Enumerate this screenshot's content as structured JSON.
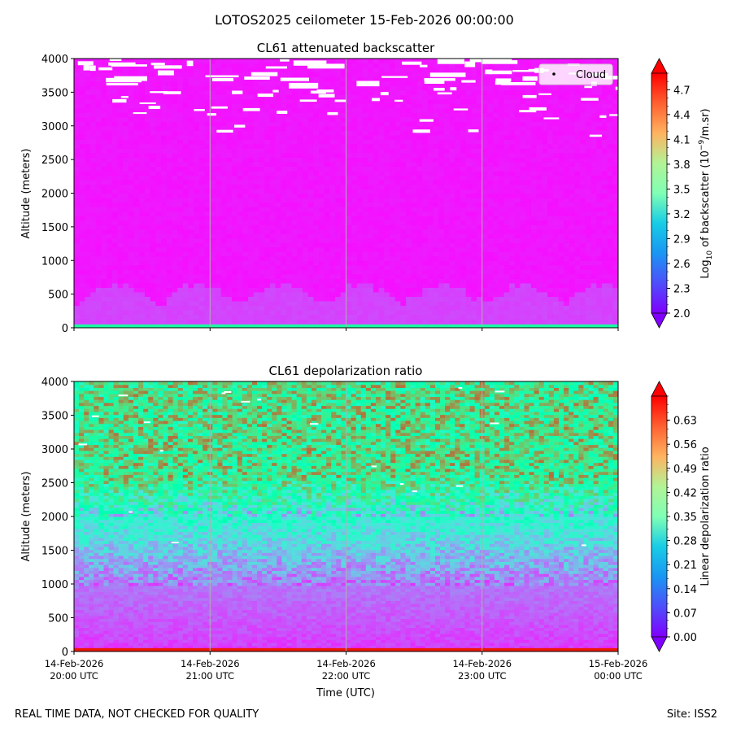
{
  "figure": {
    "suptitle": "LOTOS2025 ceilometer 15-Feb-2026 00:00:00",
    "footer_left": "REAL TIME DATA, NOT CHECKED FOR QUALITY",
    "footer_right": "Site: ISS2",
    "xlabel": "Time (UTC)"
  },
  "chart_data": [
    {
      "type": "heatmap",
      "title": "CL61 attenuated backscatter",
      "ylabel": "Altitude (meters)",
      "xlabel": "",
      "ylim": [
        0,
        4000
      ],
      "yticks": [
        0,
        500,
        1000,
        1500,
        2000,
        2500,
        3000,
        3500,
        4000
      ],
      "xlim": [
        "14-Feb-2026 20:00 UTC",
        "15-Feb-2026 00:00 UTC"
      ],
      "xticks": [
        {
          "date": "14-Feb-2026",
          "time": "20:00 UTC"
        },
        {
          "date": "14-Feb-2026",
          "time": "21:00 UTC"
        },
        {
          "date": "14-Feb-2026",
          "time": "22:00 UTC"
        },
        {
          "date": "14-Feb-2026",
          "time": "23:00 UTC"
        },
        {
          "date": "15-Feb-2026",
          "time": "00:00 UTC"
        }
      ],
      "show_xtick_labels": false,
      "grid": "vertical",
      "legend": {
        "label": "Cloud",
        "placement": "top-right"
      },
      "colorbar": {
        "label_pre": "Log",
        "label_sub": "10",
        "label_mid": " of backscatter (10",
        "label_sup": "−9",
        "label_post": "/m.sr)",
        "range": [
          2.0,
          4.9
        ],
        "ticks": [
          "2.0",
          "2.3",
          "2.6",
          "2.9",
          "3.2",
          "3.5",
          "3.8",
          "4.1",
          "4.4",
          "4.7"
        ],
        "colormap": "rainbow",
        "extend": "both"
      },
      "description_values": {
        "surface_layer_altitude_m": [
          0,
          50
        ],
        "surface_value": 3.6,
        "boundary_layer_top_m": 600,
        "boundary_layer_value": 2.25,
        "free_troposphere_value": 2.08,
        "cloud_altitude_range_m": [
          2650,
          4000
        ]
      }
    },
    {
      "type": "heatmap",
      "title": "CL61 depolarization ratio",
      "ylabel": "Altitude (meters)",
      "xlabel": "Time (UTC)",
      "ylim": [
        0,
        4000
      ],
      "yticks": [
        0,
        500,
        1000,
        1500,
        2000,
        2500,
        3000,
        3500,
        4000
      ],
      "xlim": [
        "14-Feb-2026 20:00 UTC",
        "15-Feb-2026 00:00 UTC"
      ],
      "show_xtick_labels": true,
      "grid": "vertical",
      "colorbar": {
        "label": "Linear depolarization ratio",
        "range": [
          0.0,
          0.7
        ],
        "ticks": [
          "0.00",
          "0.07",
          "0.14",
          "0.21",
          "0.28",
          "0.35",
          "0.42",
          "0.49",
          "0.56",
          "0.63"
        ],
        "colormap": "rainbow",
        "extend": "both"
      },
      "description_values": {
        "surface_value": 0.68,
        "low_layer_value": 0.05,
        "mid_layer_value": 0.25,
        "upper_layer_value": 0.45
      }
    }
  ]
}
